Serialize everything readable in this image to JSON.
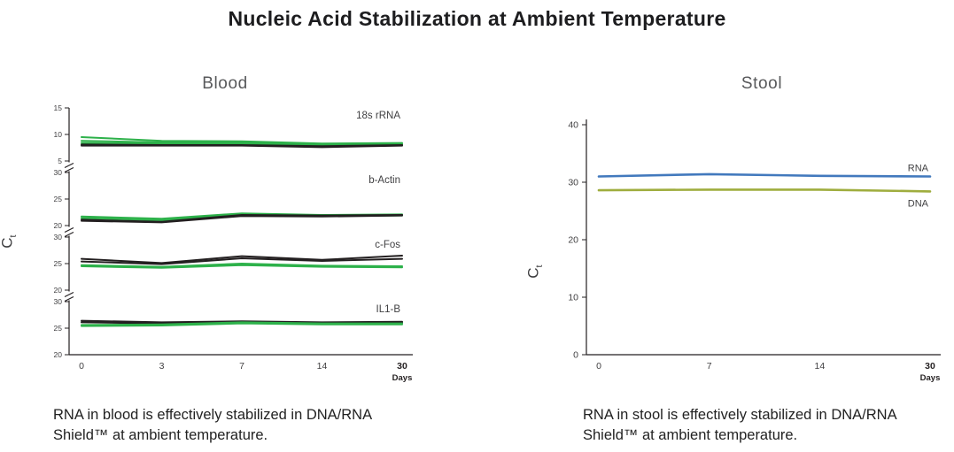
{
  "page_title": "Nucleic Acid Stabilization at Ambient Temperature",
  "y_axis": {
    "letter": "C",
    "subscript": "t"
  },
  "captions": {
    "blood": "RNA in blood is effectively stabilized in DNA/RNA\nShield™ at ambient temperature.",
    "stool": "RNA in stool is effectively stabilized in DNA/RNA\nShield™ at ambient temperature."
  },
  "colors": {
    "green": "#2db14a",
    "black": "#231f20",
    "rna_blue": "#4279bd",
    "dna_olive": "#9fad3e",
    "axis": "#231f20",
    "text": "#414042"
  },
  "chart_data": [
    {
      "type": "line",
      "title": "Blood",
      "xlabel": "Days",
      "ylabel": "Ct",
      "x": [
        0,
        3,
        7,
        14,
        30
      ],
      "x_tick_labels": [
        "0",
        "3",
        "7",
        "14",
        "30"
      ],
      "legend": null,
      "grid": false,
      "panels": [
        {
          "label": "18s rRNA",
          "ylim": [
            5,
            15
          ],
          "yticks": [
            15,
            10,
            5
          ],
          "series": [
            {
              "name": "green-replicate-1",
              "color": "#2db14a",
              "values": [
                9.5,
                8.8,
                8.7,
                8.3,
                8.4
              ]
            },
            {
              "name": "green-replicate-2",
              "color": "#2db14a",
              "values": [
                8.8,
                8.5,
                8.5,
                8.1,
                8.2
              ]
            },
            {
              "name": "green-replicate-3",
              "color": "#2db14a",
              "values": [
                8.4,
                8.3,
                8.3,
                8.0,
                8.1
              ]
            },
            {
              "name": "black-replicate-1",
              "color": "#231f20",
              "values": [
                8.1,
                8.0,
                8.0,
                7.8,
                8.0
              ]
            },
            {
              "name": "black-replicate-2",
              "color": "#231f20",
              "values": [
                7.9,
                7.9,
                7.9,
                7.6,
                7.9
              ]
            }
          ]
        },
        {
          "label": "b-Actin",
          "ylim": [
            20,
            30
          ],
          "yticks": [
            30,
            25,
            20
          ],
          "series": [
            {
              "name": "green-replicate-1",
              "color": "#2db14a",
              "values": [
                21.7,
                21.3,
                22.3,
                22.0,
                22.1
              ]
            },
            {
              "name": "green-replicate-2",
              "color": "#2db14a",
              "values": [
                21.4,
                21.0,
                22.1,
                21.8,
                21.9
              ]
            },
            {
              "name": "black-replicate-1",
              "color": "#231f20",
              "values": [
                21.1,
                20.7,
                22.0,
                21.9,
                22.0
              ]
            },
            {
              "name": "black-replicate-2",
              "color": "#231f20",
              "values": [
                20.9,
                20.6,
                21.8,
                21.7,
                21.9
              ]
            }
          ]
        },
        {
          "label": "c-Fos",
          "ylim": [
            20,
            30
          ],
          "yticks": [
            30,
            25,
            20
          ],
          "series": [
            {
              "name": "black-replicate-1",
              "color": "#231f20",
              "values": [
                25.9,
                25.1,
                26.4,
                25.7,
                26.5
              ]
            },
            {
              "name": "black-replicate-2",
              "color": "#231f20",
              "values": [
                25.4,
                24.9,
                26.0,
                25.5,
                25.9
              ]
            },
            {
              "name": "green-replicate-1",
              "color": "#2db14a",
              "values": [
                24.7,
                24.4,
                25.0,
                24.6,
                24.5
              ]
            },
            {
              "name": "green-replicate-2",
              "color": "#2db14a",
              "values": [
                24.5,
                24.2,
                24.7,
                24.4,
                24.3
              ]
            }
          ]
        },
        {
          "label": "IL1-B",
          "ylim": [
            20,
            30
          ],
          "yticks": [
            30,
            25,
            20
          ],
          "series": [
            {
              "name": "black-replicate-1",
              "color": "#231f20",
              "values": [
                26.4,
                26.1,
                26.3,
                26.1,
                26.2
              ]
            },
            {
              "name": "black-replicate-2",
              "color": "#231f20",
              "values": [
                26.1,
                25.9,
                26.1,
                25.9,
                26.0
              ]
            },
            {
              "name": "green-replicate-1",
              "color": "#2db14a",
              "values": [
                25.6,
                25.7,
                26.1,
                25.9,
                25.9
              ]
            },
            {
              "name": "green-replicate-2",
              "color": "#2db14a",
              "values": [
                25.4,
                25.5,
                25.9,
                25.7,
                25.7
              ]
            }
          ]
        }
      ]
    },
    {
      "type": "line",
      "title": "Stool",
      "xlabel": "Days",
      "ylabel": "Ct",
      "x": [
        0,
        7,
        14,
        30
      ],
      "x_tick_labels": [
        "0",
        "7",
        "14",
        "30"
      ],
      "ylim": [
        0,
        40
      ],
      "yticks": [
        40,
        30,
        20,
        10,
        0
      ],
      "legend": "inline-right",
      "grid": false,
      "series": [
        {
          "name": "RNA",
          "color": "#4279bd",
          "values": [
            31.0,
            31.4,
            31.1,
            31.0
          ],
          "label_position": "above"
        },
        {
          "name": "DNA",
          "color": "#9fad3e",
          "values": [
            28.6,
            28.7,
            28.7,
            28.4
          ],
          "label_position": "below"
        }
      ]
    }
  ]
}
